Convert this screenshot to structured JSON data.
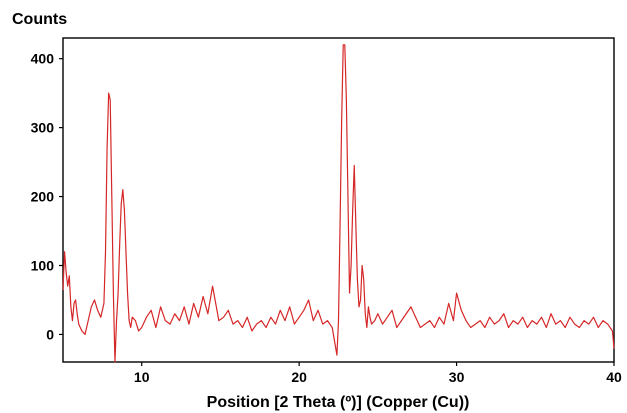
{
  "chart_data": {
    "type": "line",
    "title": "",
    "xlabel": "Position [2 Theta (º)] (Copper (Cu))",
    "ylabel": "Counts",
    "xlim": [
      5,
      40
    ],
    "ylim": [
      -40,
      430
    ],
    "x_ticks": [
      10,
      20,
      30,
      40
    ],
    "y_ticks": [
      0,
      100,
      200,
      300,
      400
    ],
    "x_tick_labels": [
      "10",
      "20",
      "30",
      "40"
    ],
    "y_tick_labels": [
      "0",
      "100",
      "200",
      "300",
      "400"
    ],
    "grid": false,
    "legend": "none",
    "line_color": "#d62728",
    "series": [
      {
        "x": [
          5.0,
          5.1,
          5.2,
          5.3,
          5.4,
          5.5,
          5.6,
          5.7,
          5.8,
          5.9,
          6.0,
          6.2,
          6.4,
          6.6,
          6.8,
          7.0,
          7.2,
          7.4,
          7.6,
          7.7,
          7.8,
          7.9,
          8.0,
          8.1,
          8.2,
          8.3,
          8.4,
          8.5,
          8.6,
          8.7,
          8.8,
          8.9,
          9.0,
          9.1,
          9.2,
          9.3,
          9.4,
          9.6,
          9.8,
          10.0,
          10.3,
          10.6,
          10.9,
          11.2,
          11.5,
          11.8,
          12.1,
          12.4,
          12.7,
          13.0,
          13.3,
          13.6,
          13.9,
          14.2,
          14.5,
          14.7,
          14.9,
          15.2,
          15.5,
          15.8,
          16.1,
          16.4,
          16.7,
          17.0,
          17.3,
          17.6,
          17.9,
          18.2,
          18.5,
          18.8,
          19.1,
          19.4,
          19.7,
          20.0,
          20.3,
          20.6,
          20.9,
          21.2,
          21.5,
          21.8,
          22.1,
          22.4,
          22.5,
          22.6,
          22.7,
          22.8,
          22.9,
          23.0,
          23.1,
          23.2,
          23.3,
          23.4,
          23.5,
          23.6,
          23.7,
          23.8,
          23.9,
          24.0,
          24.1,
          24.2,
          24.3,
          24.4,
          24.5,
          24.6,
          24.8,
          25.0,
          25.3,
          25.6,
          25.9,
          26.2,
          26.5,
          26.8,
          27.1,
          27.4,
          27.7,
          28.0,
          28.3,
          28.6,
          28.9,
          29.2,
          29.5,
          29.8,
          30.0,
          30.3,
          30.6,
          30.9,
          31.2,
          31.5,
          31.8,
          32.1,
          32.4,
          32.7,
          33.0,
          33.3,
          33.6,
          33.9,
          34.2,
          34.5,
          34.8,
          35.1,
          35.4,
          35.7,
          36.0,
          36.3,
          36.6,
          36.9,
          37.2,
          37.5,
          37.8,
          38.1,
          38.4,
          38.7,
          39.0,
          39.3,
          39.6,
          39.9,
          40.0
        ],
        "y": [
          65,
          120,
          90,
          70,
          85,
          40,
          20,
          45,
          50,
          30,
          15,
          5,
          0,
          20,
          40,
          50,
          35,
          25,
          45,
          120,
          270,
          350,
          340,
          200,
          60,
          -40,
          20,
          60,
          130,
          190,
          210,
          180,
          120,
          60,
          20,
          10,
          25,
          20,
          5,
          10,
          25,
          35,
          10,
          40,
          20,
          15,
          30,
          20,
          40,
          15,
          45,
          25,
          55,
          30,
          70,
          45,
          20,
          25,
          35,
          15,
          20,
          10,
          25,
          5,
          15,
          20,
          10,
          25,
          15,
          35,
          20,
          40,
          15,
          25,
          35,
          50,
          20,
          35,
          15,
          20,
          10,
          -30,
          20,
          160,
          310,
          420,
          420,
          340,
          200,
          60,
          100,
          180,
          245,
          160,
          80,
          40,
          50,
          100,
          80,
          30,
          10,
          40,
          25,
          15,
          20,
          30,
          15,
          25,
          35,
          10,
          20,
          30,
          40,
          25,
          10,
          15,
          20,
          10,
          25,
          15,
          45,
          20,
          60,
          35,
          20,
          10,
          15,
          20,
          10,
          25,
          15,
          20,
          30,
          10,
          20,
          15,
          25,
          10,
          20,
          15,
          25,
          10,
          30,
          15,
          20,
          10,
          25,
          15,
          10,
          20,
          15,
          25,
          10,
          20,
          15,
          5,
          -20
        ]
      }
    ]
  }
}
